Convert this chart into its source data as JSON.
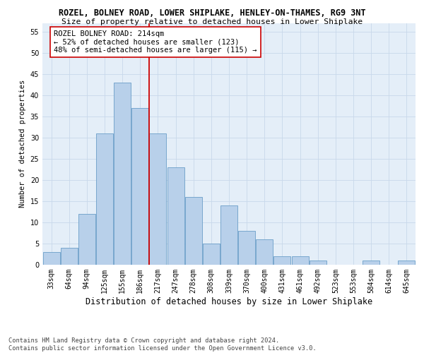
{
  "title1": "ROZEL, BOLNEY ROAD, LOWER SHIPLAKE, HENLEY-ON-THAMES, RG9 3NT",
  "title2": "Size of property relative to detached houses in Lower Shiplake",
  "xlabel": "Distribution of detached houses by size in Lower Shiplake",
  "ylabel": "Number of detached properties",
  "bin_labels": [
    "33sqm",
    "64sqm",
    "94sqm",
    "125sqm",
    "155sqm",
    "186sqm",
    "217sqm",
    "247sqm",
    "278sqm",
    "308sqm",
    "339sqm",
    "370sqm",
    "400sqm",
    "431sqm",
    "461sqm",
    "492sqm",
    "523sqm",
    "553sqm",
    "584sqm",
    "614sqm",
    "645sqm"
  ],
  "bar_heights": [
    3,
    4,
    12,
    31,
    43,
    37,
    31,
    23,
    16,
    5,
    14,
    8,
    6,
    2,
    2,
    1,
    0,
    0,
    1,
    0,
    1
  ],
  "bar_color": "#b8d0ea",
  "bar_edge_color": "#6a9ec8",
  "vline_color": "#cc0000",
  "annotation_text": "ROZEL BOLNEY ROAD: 214sqm\n← 52% of detached houses are smaller (123)\n48% of semi-detached houses are larger (115) →",
  "annotation_box_color": "#ffffff",
  "annotation_box_edge": "#cc0000",
  "ylim": [
    0,
    57
  ],
  "yticks": [
    0,
    5,
    10,
    15,
    20,
    25,
    30,
    35,
    40,
    45,
    50,
    55
  ],
  "grid_color": "#c8d8ea",
  "bg_color": "#e4eef8",
  "footer": "Contains HM Land Registry data © Crown copyright and database right 2024.\nContains public sector information licensed under the Open Government Licence v3.0.",
  "title1_fontsize": 8.5,
  "title2_fontsize": 8.2,
  "xlabel_fontsize": 8.5,
  "ylabel_fontsize": 7.5,
  "tick_fontsize": 7,
  "annotation_fontsize": 7.5,
  "footer_fontsize": 6.2
}
